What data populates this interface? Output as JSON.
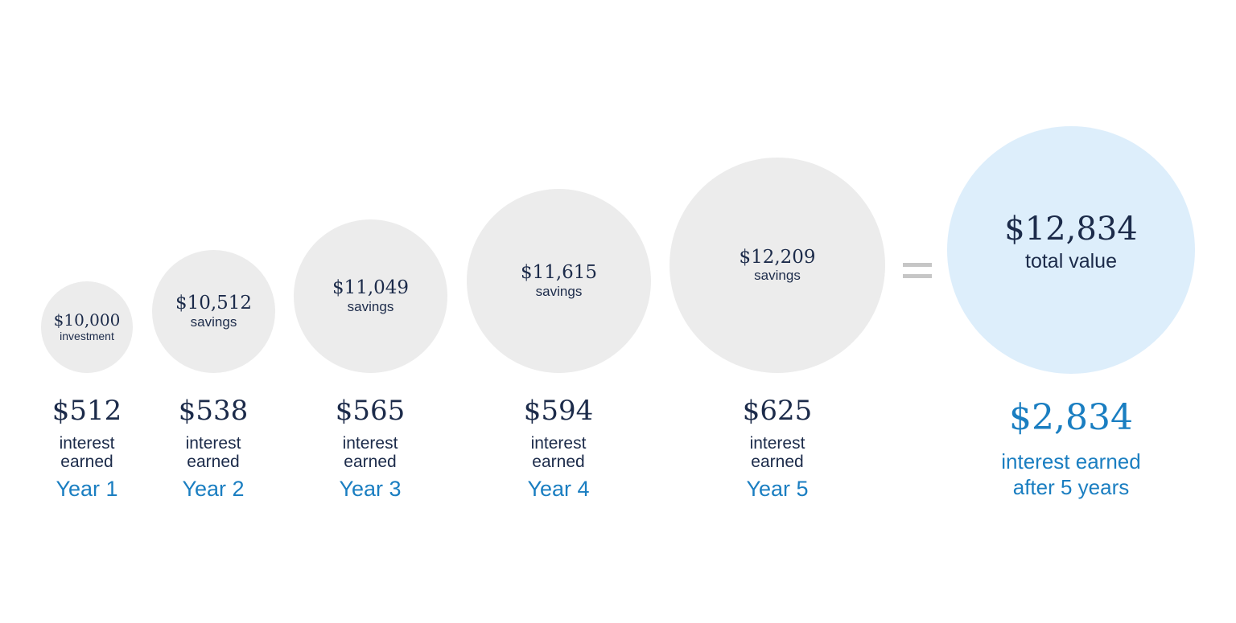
{
  "circles": [
    {
      "amount": "$10,000",
      "label": "investment"
    },
    {
      "amount": "$10,512",
      "label": "savings"
    },
    {
      "amount": "$11,049",
      "label": "savings"
    },
    {
      "amount": "$11,615",
      "label": "savings"
    },
    {
      "amount": "$12,209",
      "label": "savings"
    }
  ],
  "years": [
    {
      "interest": "$512",
      "interest_label_1": "interest",
      "interest_label_2": "earned",
      "year": "Year 1"
    },
    {
      "interest": "$538",
      "interest_label_1": "interest",
      "interest_label_2": "earned",
      "year": "Year 2"
    },
    {
      "interest": "$565",
      "interest_label_1": "interest",
      "interest_label_2": "earned",
      "year": "Year 3"
    },
    {
      "interest": "$594",
      "interest_label_1": "interest",
      "interest_label_2": "earned",
      "year": "Year 4"
    },
    {
      "interest": "$625",
      "interest_label_1": "interest",
      "interest_label_2": "earned",
      "year": "Year 5"
    }
  ],
  "total": {
    "amount": "$12,834",
    "label": "total value",
    "interest": "$2,834",
    "interest_label_1": "interest earned",
    "interest_label_2": "after 5 years"
  },
  "colors": {
    "circle": "#ececec",
    "total_circle": "#ddeefb",
    "navy": "#1c2b4a",
    "accent_blue": "#1a7ec1",
    "equals": "#c6c6c6"
  }
}
